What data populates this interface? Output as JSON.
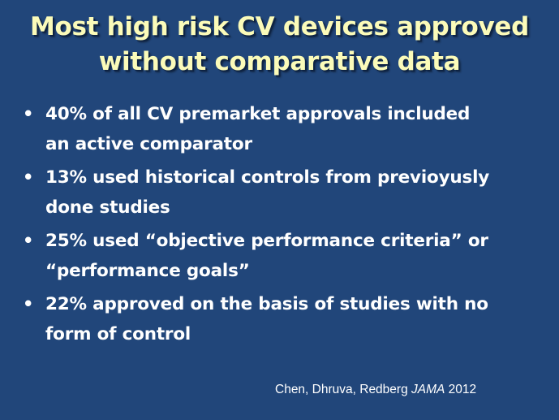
{
  "slide": {
    "background_color": "#21467a",
    "title_color": "#fbfbb9",
    "text_color": "#ffffff",
    "title_lines": [
      "Most high risk CV devices approved",
      "without comparative data"
    ],
    "bullet_glyph": "•",
    "bullets": [
      {
        "lines": [
          "40% of all CV premarket approvals included",
          "an active comparator"
        ]
      },
      {
        "lines": [
          "13% used historical controls from previoyusly",
          "done studies"
        ]
      },
      {
        "lines": [
          "25% used “objective performance criteria” or",
          "“performance goals”"
        ]
      },
      {
        "lines": [
          "22% approved on the basis of studies with no",
          "form of  control"
        ]
      }
    ],
    "citation": {
      "authors": "Chen, Dhruva, Redberg ",
      "journal": "JAMA",
      "year": " 2012"
    }
  }
}
